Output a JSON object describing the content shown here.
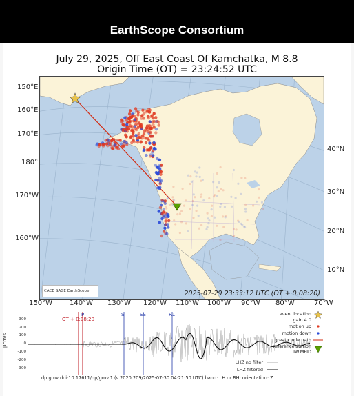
{
  "header": {
    "brand": "EarthScope Consortium"
  },
  "title": {
    "line1": "July 29, 2025, Off East Coast Of Kamchatka, M 8.8",
    "line2": "Origin Time (OT) = 23:24:52 UTC"
  },
  "map": {
    "left_lat_labels": [
      "150°E",
      "160°E",
      "170°E",
      "180°",
      "170°W",
      "160°W"
    ],
    "right_lat_labels": [
      "40°N",
      "30°N",
      "20°N",
      "10°N"
    ],
    "lon_labels": [
      "150°W",
      "140°W",
      "130°W",
      "120°W",
      "110°W",
      "100°W",
      "90°W",
      "80°W",
      "70°W"
    ],
    "timestamp": "2025-07-29 23:33:12 UTC (OT + 0:08:20)",
    "logos": {
      "cacie": "CACE",
      "sage": "SAGE",
      "earthscope": "EarthScope"
    },
    "colors": {
      "ocean": "#bcd2e8",
      "land": "#fbf3d8",
      "great_circle": "#d22b12",
      "motion_up": "#e03a22",
      "motion_down": "#2b4bd8",
      "event_star": "#e8c24a",
      "ref_station": "#5aa000"
    }
  },
  "seismogram": {
    "yaxis_label": "µcm/s",
    "yticks": [
      "300",
      "200",
      "100",
      "0",
      "-100",
      "-200",
      "-300"
    ],
    "phases": [
      "P",
      "S",
      "SS",
      "R1"
    ],
    "ot_label": "OT + 0:08:20",
    "legend": {
      "event_location": "event location",
      "gain": "gain  4.0",
      "motion_up": "motion up",
      "motion_down": "motion down",
      "great_circle": "great circle path",
      "reference_station": "reference station",
      "station_code": "IW.MFID",
      "no_filter": "LHZ no filter",
      "filtered": "LHZ filtered"
    }
  },
  "caption": "dp.gmv doi:10.17611/dp/gmv.1 (v.2020.209/2025-07-30 04:21:50 UTC) band: LH or BH; orientation: Z"
}
